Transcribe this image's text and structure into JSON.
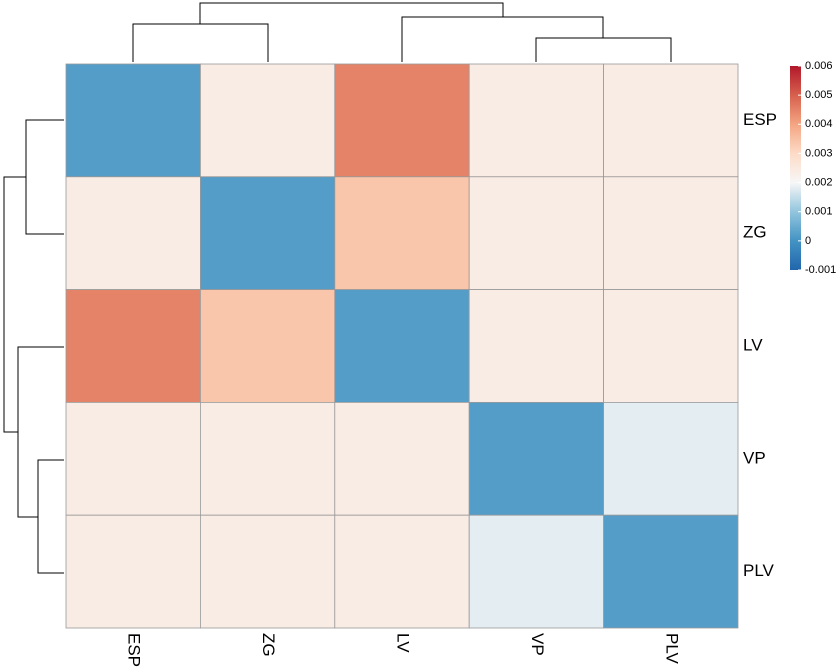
{
  "chart_data": {
    "type": "heatmap",
    "columns": [
      "ESP",
      "ZG",
      "LV",
      "VP",
      "PLV"
    ],
    "rows": [
      "ESP",
      "ZG",
      "LV",
      "VP",
      "PLV"
    ],
    "values": [
      [
        0.0002,
        0.0024,
        0.0045,
        0.0024,
        0.0024
      ],
      [
        0.0024,
        0.0002,
        0.0034,
        0.0024,
        0.0024
      ],
      [
        0.0045,
        0.0034,
        0.0002,
        0.0024,
        0.0024
      ],
      [
        0.0024,
        0.0024,
        0.0024,
        0.0002,
        0.0018
      ],
      [
        0.0024,
        0.0024,
        0.0024,
        0.0018,
        0.0002
      ]
    ],
    "clim": [
      -0.001,
      0.006
    ],
    "cticks": [
      -0.001,
      0,
      0.001,
      0.002,
      0.003,
      0.004,
      0.005,
      0.006
    ],
    "colors": [
      "#2166ac",
      "#4393c3",
      "#92c5de",
      "#f7f7f7",
      "#fddbc7",
      "#f4a582",
      "#d6604d",
      "#b2182b"
    ]
  }
}
